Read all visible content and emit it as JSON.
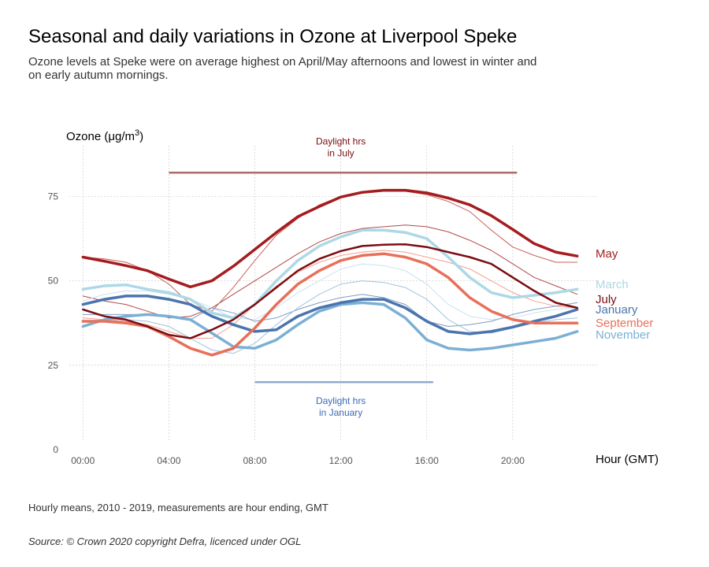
{
  "title": "Seasonal and daily variations in Ozone at Liverpool Speke",
  "subtitle": "Ozone levels at Speke were on average highest on April/May afternoons and lowest in winter and on early autumn mornings.",
  "caption": "Hourly means, 2010 - 2019, measurements are hour ending, GMT",
  "source": "Source: © Crown 2020 copyright Defra,  licenced under OGL",
  "chart_data": {
    "type": "line",
    "ylabel": "Ozone (μg/m³)",
    "xlabel": "Hour (GMT)",
    "xlim": [
      -1,
      24
    ],
    "ylim": [
      0,
      90
    ],
    "grid": true,
    "x": [
      0,
      1,
      2,
      3,
      4,
      5,
      6,
      7,
      8,
      9,
      10,
      11,
      12,
      13,
      14,
      15,
      16,
      17,
      18,
      19,
      20,
      21,
      22,
      23
    ],
    "x_ticks": [
      {
        "value": 0,
        "label": "00:00"
      },
      {
        "value": 4,
        "label": "04:00"
      },
      {
        "value": 8,
        "label": "08:00"
      },
      {
        "value": 12,
        "label": "12:00"
      },
      {
        "value": 16,
        "label": "16:00"
      },
      {
        "value": 20,
        "label": "20:00"
      }
    ],
    "y_ticks": [
      {
        "value": 0,
        "label": "0"
      },
      {
        "value": 25,
        "label": "25"
      },
      {
        "value": 50,
        "label": "50"
      },
      {
        "value": 75,
        "label": "75"
      }
    ],
    "annotations": [
      {
        "id": "july",
        "line1": "Daylight hrs",
        "line2": "in July",
        "x_start": 4,
        "x_end": 20.2,
        "y": 82,
        "color": "#7b0e12",
        "line_color": "#b06a6c",
        "label_position": "above"
      },
      {
        "id": "january",
        "line1": "Daylight hrs",
        "line2": "in January",
        "x_start": 8,
        "x_end": 16.3,
        "y": 20,
        "color": "#3a6bb5",
        "line_color": "#8eabd2",
        "label_position": "below"
      }
    ],
    "series": [
      {
        "name": "",
        "color": "#b04a47",
        "width": 1,
        "values": [
          45.5,
          44,
          43,
          41,
          39,
          39.5,
          42,
          46,
          50,
          54,
          58,
          61.5,
          64,
          65.5,
          66,
          66.5,
          66,
          64.5,
          62,
          59,
          55,
          51,
          48.5,
          46
        ]
      },
      {
        "name": "",
        "color": "#c95f58",
        "width": 1,
        "values": [
          57,
          56.5,
          55.5,
          53,
          49,
          43,
          41,
          48,
          56,
          63.5,
          68.5,
          72.5,
          75,
          76,
          76.5,
          76.5,
          75.5,
          73.5,
          70.5,
          65,
          60,
          57.5,
          55.5,
          55.5
        ]
      },
      {
        "name": "",
        "color": "#f2a08e",
        "width": 1,
        "values": [
          39,
          38.5,
          38,
          37,
          35,
          33,
          33,
          37,
          43,
          48.5,
          52.5,
          55.5,
          57.5,
          58.5,
          59,
          58.5,
          57,
          55.5,
          53.5,
          50,
          46.5,
          44,
          42.5,
          42
        ]
      },
      {
        "name": "",
        "color": "#c9e2ef",
        "width": 1,
        "values": [
          44,
          46,
          47,
          47,
          46,
          44.5,
          42,
          39,
          38.5,
          42,
          46.5,
          50,
          53.5,
          55,
          54.5,
          53,
          49,
          43,
          39.5,
          38.5,
          39,
          40.5,
          41.5,
          42
        ]
      },
      {
        "name": "",
        "color": "#7f9cc2",
        "width": 1,
        "values": [
          40,
          40,
          40,
          40,
          39.5,
          38.5,
          42,
          40.5,
          38,
          39,
          41.5,
          43.5,
          45,
          46,
          45,
          43,
          38,
          36.5,
          37,
          38,
          40,
          41.5,
          42.5,
          43.5
        ]
      },
      {
        "name": "",
        "color": "#9fc3dc",
        "width": 1,
        "values": [
          38,
          38.5,
          38.5,
          38,
          36.5,
          33,
          29.5,
          28.5,
          31.5,
          37,
          42,
          46,
          49,
          50,
          49.5,
          48,
          44.5,
          38.5,
          35,
          34.5,
          36,
          37.5,
          38.5,
          39
        ]
      },
      {
        "name": "March",
        "color": "#add8e6",
        "width": 3.5,
        "values": [
          47.5,
          48.5,
          48.8,
          47.5,
          46.5,
          44.5,
          40.5,
          39,
          43,
          50,
          56,
          60.3,
          63,
          65,
          65,
          64.3,
          62.5,
          57,
          51,
          46.5,
          45,
          45.7,
          46.5,
          47.5
        ]
      },
      {
        "name": "November",
        "color": "#7bafd4",
        "width": 3.5,
        "values": [
          36.5,
          38.5,
          39.5,
          40,
          39.5,
          38.5,
          34.5,
          30.5,
          30,
          32.5,
          37,
          41,
          43,
          43.5,
          43,
          39,
          32.5,
          30,
          29.5,
          30,
          31,
          32,
          33,
          35
        ]
      },
      {
        "name": "January",
        "color": "#4a74ae",
        "width": 3.5,
        "values": [
          43,
          44.5,
          45.5,
          45.5,
          44.5,
          43,
          39.5,
          37,
          35,
          35.5,
          39.5,
          42,
          43.5,
          44.5,
          44.5,
          42,
          38,
          35,
          34.3,
          35,
          36.3,
          38,
          39.5,
          41.5
        ]
      },
      {
        "name": "September",
        "color": "#e8705a",
        "width": 3.5,
        "values": [
          38,
          38,
          37.5,
          36.5,
          33.5,
          30,
          28,
          30,
          36,
          43,
          49,
          53,
          56,
          57.5,
          58,
          57,
          55,
          51,
          45,
          41,
          38.5,
          37.5,
          37.5,
          37.5
        ]
      },
      {
        "name": "July",
        "color": "#7b0e12",
        "width": 2.5,
        "values": [
          41.5,
          39.5,
          38.5,
          36.5,
          34,
          33,
          35.5,
          38.5,
          43,
          48,
          53,
          56.5,
          58.8,
          60.3,
          60.7,
          60.8,
          60,
          58.5,
          57,
          55,
          51,
          47,
          43.5,
          42
        ]
      },
      {
        "name": "May",
        "color": "#a51c1f",
        "width": 3.5,
        "values": [
          57,
          55.8,
          54.5,
          53,
          50.5,
          48.2,
          50,
          54.3,
          59.3,
          64.3,
          69,
          72,
          74.8,
          76.2,
          76.8,
          76.8,
          76,
          74.5,
          72.5,
          69.3,
          65.2,
          61,
          58.5,
          57.3
        ]
      }
    ],
    "legend": [
      {
        "name": "May",
        "color": "#a51c1f",
        "y": 58
      },
      {
        "name": "March",
        "color": "#add8e6",
        "y": 49
      },
      {
        "name": "July",
        "color": "#7b0e12",
        "y": 44.5
      },
      {
        "name": "January",
        "color": "#4a74ae",
        "y": 41.5
      },
      {
        "name": "September",
        "color": "#e8705a",
        "y": 37.5
      },
      {
        "name": "November",
        "color": "#7bafd4",
        "y": 34
      }
    ]
  }
}
